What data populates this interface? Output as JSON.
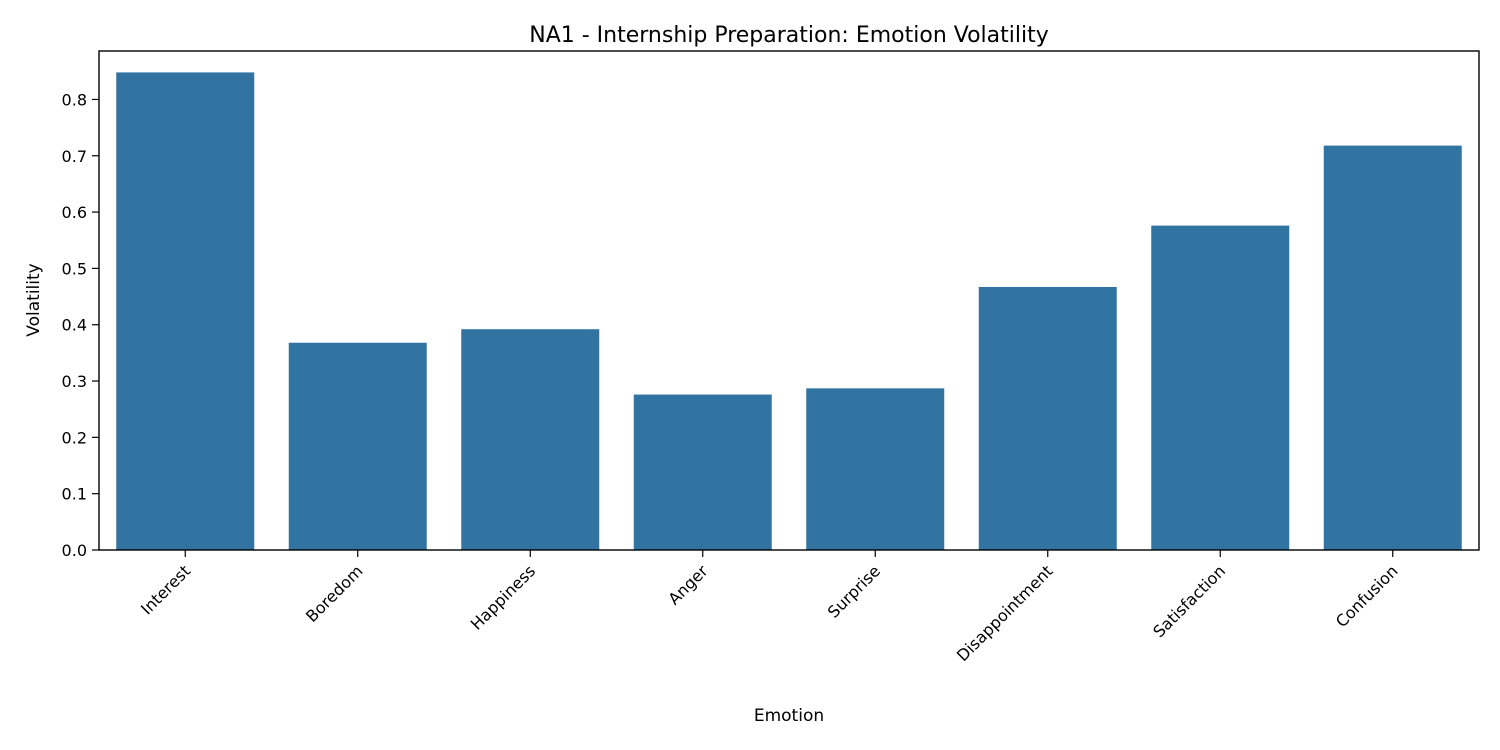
{
  "chart_data": {
    "type": "bar",
    "title": "NA1 - Internship Preparation: Emotion Volatility",
    "xlabel": "Emotion",
    "ylabel": "Volatility",
    "categories": [
      "Interest",
      "Boredom",
      "Happiness",
      "Anger",
      "Surprise",
      "Disappointment",
      "Satisfaction",
      "Confusion"
    ],
    "values": [
      0.848,
      0.368,
      0.392,
      0.276,
      0.287,
      0.467,
      0.576,
      0.718
    ],
    "ylim": [
      0,
      0.886
    ],
    "yticks": [
      "0.0",
      "0.1",
      "0.2",
      "0.3",
      "0.4",
      "0.5",
      "0.6",
      "0.7",
      "0.8"
    ],
    "grid": false,
    "bar_color": "#3274a1",
    "x_tick_rotation": 45
  }
}
